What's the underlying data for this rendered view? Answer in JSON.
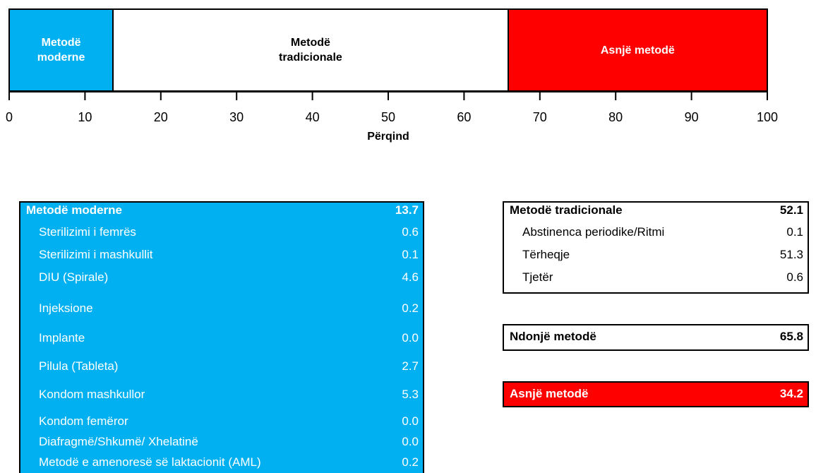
{
  "chart_data": {
    "type": "bar",
    "orientation": "horizontal",
    "stacked": true,
    "series": [
      {
        "name": "Metodë moderne",
        "color": "#00b0f0",
        "values": [
          13.7
        ]
      },
      {
        "name": "Metodë tradicionale",
        "color": "#ffffff",
        "values": [
          52.1
        ]
      },
      {
        "name": "Asnjë metodë",
        "color": "#ff0000",
        "values": [
          34.2
        ]
      }
    ],
    "xlim": [
      0,
      100
    ],
    "xticks": [
      0,
      10,
      20,
      30,
      40,
      50,
      60,
      70,
      80,
      90,
      100
    ],
    "xlabel": "Përqind"
  },
  "tables": [
    {
      "color": "#00b0f0",
      "rows": [
        [
          "Metodë moderne",
          "13.7"
        ],
        [
          "Sterilizimi i femrës",
          "0.6"
        ],
        [
          "Sterilizimi i mashkullit",
          "0.1"
        ],
        [
          "DIU (Spirale)",
          "4.6"
        ],
        [
          "Injeksione",
          "0.2"
        ],
        [
          "Implante",
          "0.0"
        ],
        [
          "Pilula (Tableta)",
          "2.7"
        ],
        [
          "Kondom mashkullor",
          "5.3"
        ],
        [
          "Kondom femëror",
          "0.0"
        ],
        [
          "Diafragmë/Shkumë/ Xhelatinë",
          "0.0"
        ],
        [
          "Metodë e amenoresë së laktacionit (AML)",
          "0.2"
        ]
      ]
    },
    {
      "color": "#ffffff",
      "rows": [
        [
          "Metodë tradicionale",
          "52.1"
        ],
        [
          "Abstinenca periodike/Ritmi",
          "0.1"
        ],
        [
          "Tërheqje",
          "51.3"
        ],
        [
          "Tjetër",
          "0.6"
        ]
      ]
    },
    {
      "color": "#ffffff",
      "rows": [
        [
          "Ndonjë metodë",
          "65.8"
        ]
      ]
    },
    {
      "color": "#ff0000",
      "rows": [
        [
          "Asnjë metodë",
          "34.2"
        ]
      ]
    }
  ]
}
